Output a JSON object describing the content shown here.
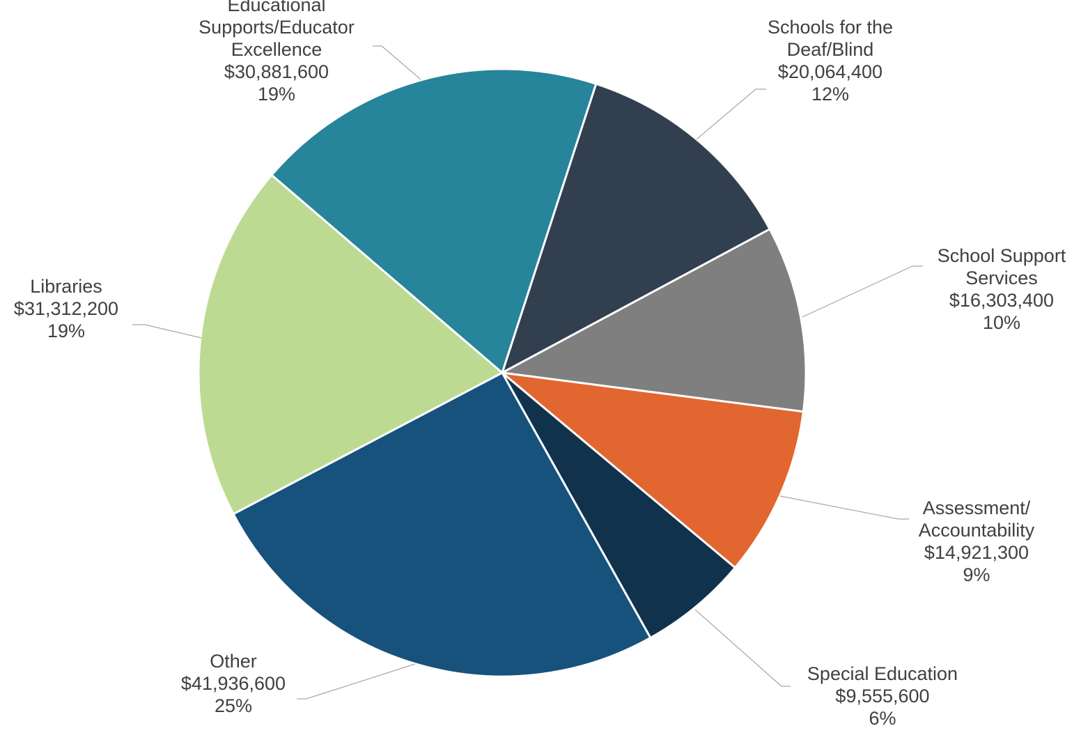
{
  "chart_data": {
    "type": "pie",
    "title": "",
    "start_angle_deg": 18,
    "direction": "clockwise",
    "slices": [
      {
        "name": "Schools for the Deaf/Blind",
        "label_lines": [
          "Schools for the",
          "Deaf/Blind"
        ],
        "value": 20064400,
        "value_label": "$20,064,400",
        "percent_label": "12%",
        "color": "#323f4f"
      },
      {
        "name": "School Support Services",
        "label_lines": [
          "School Support",
          "Services"
        ],
        "value": 16303400,
        "value_label": "$16,303,400",
        "percent_label": "10%",
        "color": "#7f7f7f"
      },
      {
        "name": "Assessment/ Accountability",
        "label_lines": [
          "Assessment/",
          "Accountability"
        ],
        "value": 14921300,
        "value_label": "$14,921,300",
        "percent_label": "9%",
        "color": "#e2662f"
      },
      {
        "name": "Special Education",
        "label_lines": [
          "Special Education"
        ],
        "value": 9555600,
        "value_label": "$9,555,600",
        "percent_label": "6%",
        "color": "#10324d"
      },
      {
        "name": "Other",
        "label_lines": [
          "Other"
        ],
        "value": 41936600,
        "value_label": "$41,936,600",
        "percent_label": "25%",
        "color": "#17527c"
      },
      {
        "name": "Libraries",
        "label_lines": [
          "Libraries"
        ],
        "value": 31312200,
        "value_label": "$31,312,200",
        "percent_label": "19%",
        "color": "#bcda91"
      },
      {
        "name": "Educational Supports/Educator Excellence",
        "label_lines": [
          "Educational",
          "Supports/Educator",
          "Excellence"
        ],
        "value": 30881600,
        "value_label": "$30,881,600",
        "percent_label": "19%",
        "color": "#26849b"
      }
    ]
  }
}
